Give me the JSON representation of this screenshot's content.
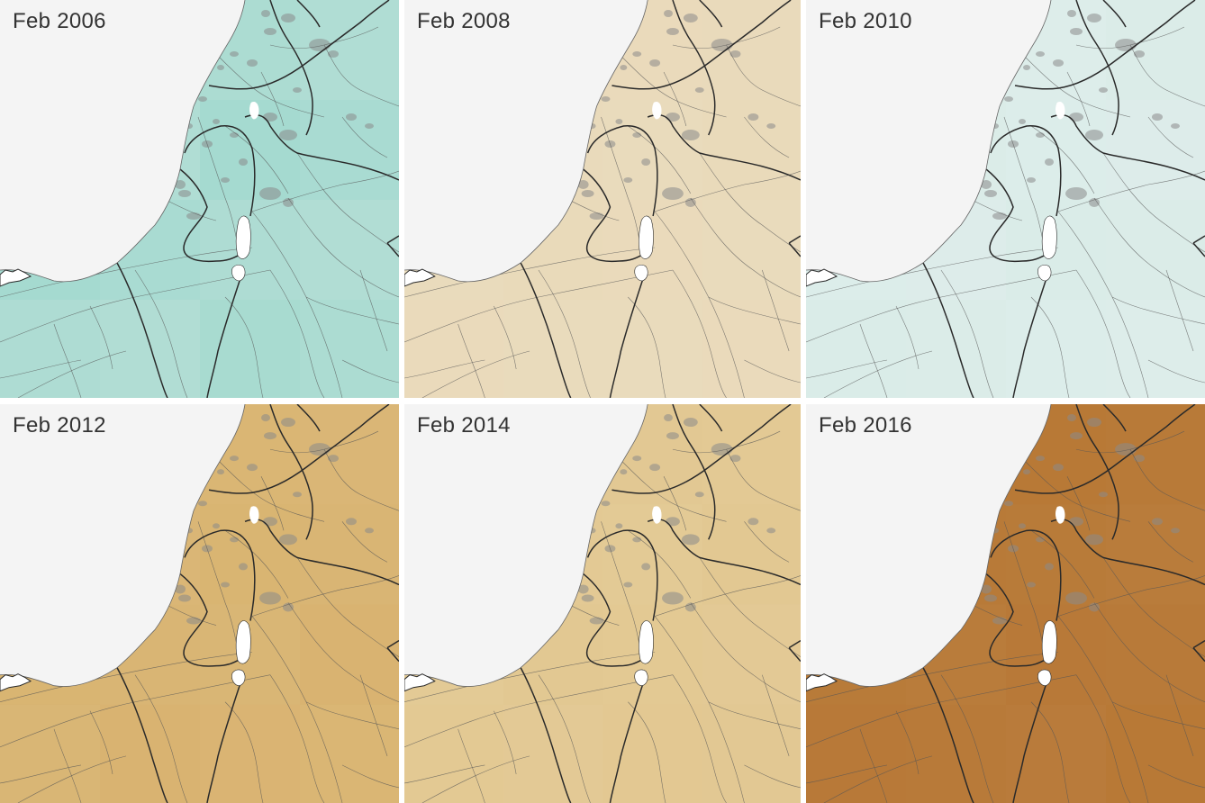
{
  "panels": [
    {
      "title": "Feb 2006",
      "tint": "#86cfc1",
      "opacity_land": 0.55
    },
    {
      "title": "Feb 2008",
      "tint": "#e8d7b4",
      "opacity_land": 0.85
    },
    {
      "title": "Feb 2010",
      "tint": "#cfe9e4",
      "opacity_land": 0.55
    },
    {
      "title": "Feb 2012",
      "tint": "#d6ad63",
      "opacity_land": 0.85
    },
    {
      "title": "Feb 2014",
      "tint": "#e0c387",
      "opacity_land": 0.85
    },
    {
      "title": "Feb 2016",
      "tint": "#b4712a",
      "opacity_land": 0.9
    }
  ],
  "colors": {
    "sea": "#f4f4f4",
    "border": "#2a2a2a",
    "road": "#555555",
    "urban": "#8a8a8a",
    "lake": "#ffffff"
  }
}
